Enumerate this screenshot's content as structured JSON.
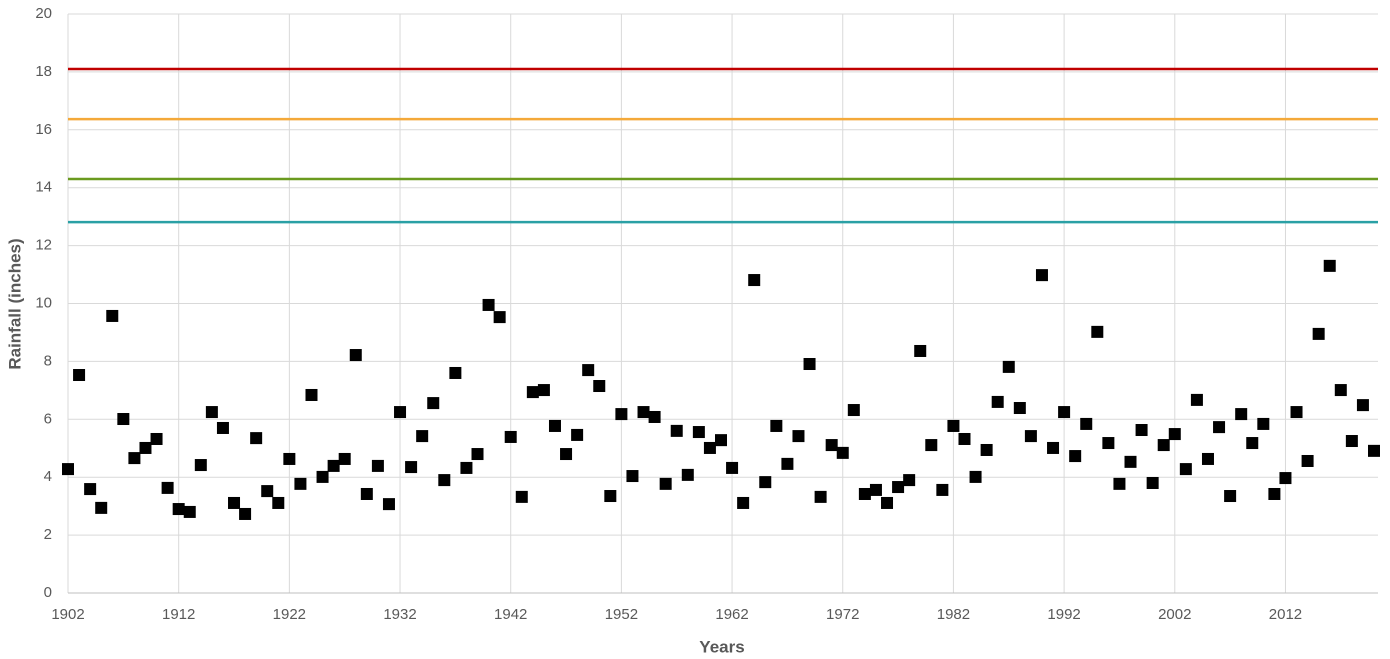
{
  "chart_data": {
    "type": "scatter",
    "x_label": "Years",
    "y_label": "Rainfall (inches)",
    "xlim": [
      1902,
      2020
    ],
    "xticks": [
      1902,
      1912,
      1922,
      1932,
      1942,
      1952,
      1962,
      1972,
      1982,
      1992,
      2002,
      2012
    ],
    "ylim": [
      0,
      20
    ],
    "yticks": [
      0,
      2,
      4,
      6,
      8,
      10,
      12,
      14,
      16,
      18,
      20
    ],
    "grid": true,
    "reference_lines": [
      {
        "value": 18.1,
        "color": "#c00000"
      },
      {
        "value": 16.37,
        "color": "#f4a93a"
      },
      {
        "value": 14.3,
        "color": "#6a9a1f"
      },
      {
        "value": 12.81,
        "color": "#2aa0a5"
      }
    ],
    "series": [
      {
        "color": "#000000",
        "x": [
          1902,
          1903,
          1904,
          1905,
          1906,
          1907,
          1908,
          1909,
          1910,
          1911,
          1912,
          1913,
          1914,
          1915,
          1916,
          1917,
          1918,
          1919,
          1920,
          1921,
          1922,
          1923,
          1924,
          1925,
          1926,
          1927,
          1928,
          1929,
          1930,
          1931,
          1932,
          1933,
          1934,
          1935,
          1936,
          1937,
          1938,
          1939,
          1940,
          1941,
          1942,
          1943,
          1944,
          1945,
          1946,
          1947,
          1948,
          1949,
          1950,
          1951,
          1952,
          1953,
          1954,
          1955,
          1956,
          1957,
          1958,
          1959,
          1960,
          1961,
          1962,
          1963,
          1964,
          1965,
          1966,
          1967,
          1968,
          1969,
          1970,
          1971,
          1972,
          1973,
          1974,
          1975,
          1976,
          1977,
          1978,
          1979,
          1980,
          1981,
          1982,
          1983,
          1984,
          1985,
          1986,
          1987,
          1988,
          1989,
          1990,
          1991,
          1992,
          1993,
          1994,
          1995,
          1996,
          1997,
          1998,
          1999,
          2000,
          2001,
          2002,
          2003,
          2004,
          2005,
          2006,
          2007,
          2008,
          2009,
          2010,
          2011,
          2012,
          2013,
          2014,
          2015,
          2016,
          2017,
          2018,
          2019,
          2020
        ],
        "values": [
          4.28,
          7.53,
          3.59,
          2.94,
          9.57,
          6.01,
          4.66,
          5.01,
          5.32,
          3.63,
          2.9,
          2.8,
          4.42,
          6.25,
          5.7,
          3.11,
          2.73,
          5.35,
          3.52,
          3.11,
          4.63,
          3.77,
          6.84,
          4.01,
          4.39,
          4.63,
          8.22,
          3.42,
          4.39,
          3.07,
          6.25,
          4.35,
          5.42,
          6.56,
          3.9,
          7.6,
          4.32,
          4.8,
          9.95,
          9.53,
          5.39,
          3.32,
          6.94,
          7.01,
          5.77,
          4.8,
          5.46,
          7.7,
          7.15,
          3.35,
          6.18,
          4.04,
          6.25,
          6.08,
          3.77,
          5.6,
          4.08,
          5.56,
          5.01,
          5.28,
          4.32,
          3.11,
          10.81,
          3.83,
          5.77,
          4.46,
          5.42,
          7.91,
          3.32,
          5.11,
          4.84,
          6.32,
          3.42,
          3.56,
          3.11,
          3.66,
          3.9,
          8.36,
          5.11,
          3.56,
          5.77,
          5.32,
          4.01,
          4.94,
          6.6,
          7.81,
          6.39,
          5.42,
          10.98,
          5.01,
          6.25,
          4.73,
          5.84,
          9.02,
          5.18,
          3.77,
          4.53,
          5.63,
          3.8,
          5.11,
          5.49,
          4.28,
          6.67,
          4.63,
          5.73,
          3.35,
          6.18,
          5.18,
          5.84,
          3.42,
          3.97,
          6.25,
          4.56,
          8.95,
          11.3,
          7.01,
          5.25,
          6.49,
          4.91
        ]
      }
    ]
  }
}
